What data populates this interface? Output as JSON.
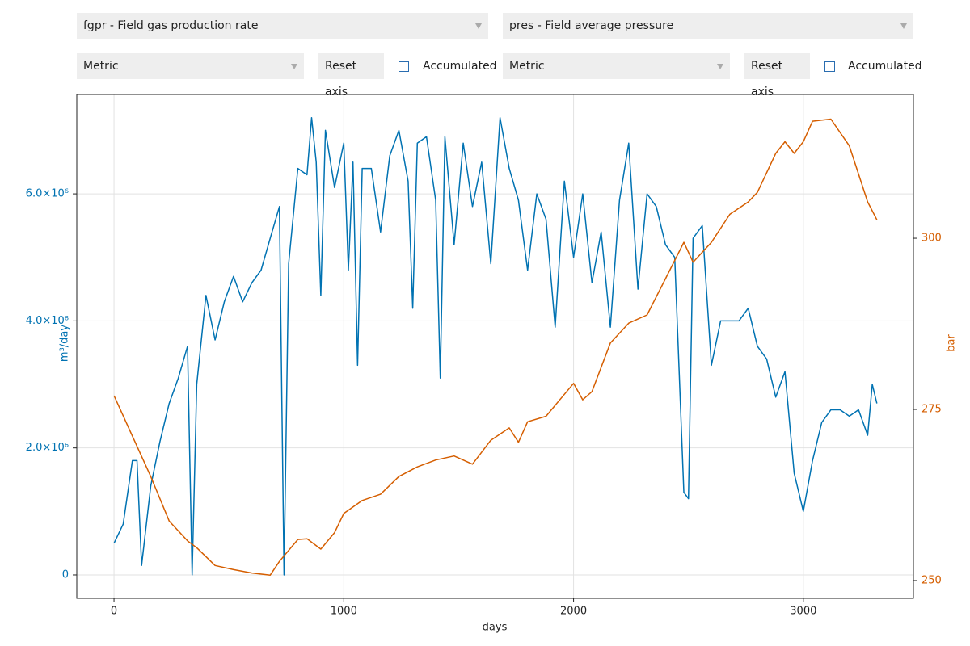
{
  "controls": {
    "left": {
      "variable": "fgpr - Field gas production rate",
      "units": "Metric",
      "reset": "Reset axis",
      "accumulated": "Accumulated"
    },
    "right": {
      "variable": "pres - Field average pressure",
      "units": "Metric",
      "reset": "Reset axis",
      "accumulated": "Accumulated"
    }
  },
  "chart_data": {
    "type": "line",
    "xlabel": "days",
    "ylabel": "m³/day",
    "y2label": "bar",
    "grid": true,
    "xlim": [
      -162,
      3479
    ],
    "ylim": [
      -369000,
      7565000
    ],
    "y2lim": [
      247.4,
      321.0
    ],
    "xticks": [
      0,
      1000,
      2000,
      3000
    ],
    "yticks": [
      0,
      {
        "value": 2000000,
        "label": "2.0×10⁶"
      },
      {
        "value": 4000000,
        "label": "4.0×10⁶"
      },
      {
        "value": 6000000,
        "label": "6.0×10⁶"
      }
    ],
    "y2ticks": [
      250,
      275,
      300
    ],
    "series": [
      {
        "name": "fgpr",
        "color": "#0072b2",
        "x": [
          0,
          40,
          80,
          100,
          120,
          160,
          200,
          240,
          280,
          320,
          340,
          360,
          400,
          440,
          480,
          520,
          560,
          600,
          640,
          680,
          720,
          740,
          760,
          800,
          840,
          860,
          880,
          900,
          920,
          960,
          1000,
          1020,
          1040,
          1060,
          1080,
          1120,
          1160,
          1200,
          1240,
          1280,
          1300,
          1320,
          1360,
          1400,
          1420,
          1440,
          1480,
          1520,
          1560,
          1600,
          1640,
          1680,
          1720,
          1760,
          1800,
          1840,
          1880,
          1920,
          1960,
          2000,
          2040,
          2080,
          2120,
          2160,
          2200,
          2240,
          2280,
          2320,
          2360,
          2400,
          2440,
          2480,
          2500,
          2520,
          2560,
          2600,
          2640,
          2680,
          2720,
          2760,
          2800,
          2840,
          2880,
          2920,
          2960,
          3000,
          3040,
          3080,
          3120,
          3160,
          3200,
          3240,
          3280,
          3300,
          3320
        ],
        "values": [
          500000,
          800000,
          1800000,
          1800000,
          150000,
          1400000,
          2100000,
          2700000,
          3100000,
          3600000,
          0,
          3000000,
          4400000,
          3700000,
          4300000,
          4700000,
          4300000,
          4600000,
          4800000,
          5300000,
          5800000,
          0,
          4900000,
          6400000,
          6300000,
          7200000,
          6500000,
          4400000,
          7000000,
          6100000,
          6800000,
          4800000,
          6500000,
          3300000,
          6400000,
          6400000,
          5400000,
          6600000,
          7000000,
          6200000,
          4200000,
          6800000,
          6900000,
          5900000,
          3100000,
          6900000,
          5200000,
          6800000,
          5800000,
          6500000,
          4900000,
          7200000,
          6400000,
          5900000,
          4800000,
          6000000,
          5600000,
          3900000,
          6200000,
          5000000,
          6000000,
          4600000,
          5400000,
          3900000,
          5900000,
          6800000,
          4500000,
          6000000,
          5800000,
          5200000,
          5000000,
          1300000,
          1200000,
          5300000,
          5500000,
          3300000,
          4000000,
          4000000,
          4000000,
          4200000,
          3600000,
          3400000,
          2800000,
          3200000,
          1600000,
          1000000,
          1800000,
          2400000,
          2600000,
          2600000,
          2500000,
          2600000,
          2200000,
          3000000,
          2700000
        ]
      },
      {
        "name": "pres",
        "color": "#d55e00",
        "axis": "y2",
        "x": [
          0,
          80,
          160,
          240,
          320,
          360,
          440,
          520,
          600,
          680,
          720,
          800,
          840,
          900,
          960,
          1000,
          1080,
          1160,
          1240,
          1320,
          1400,
          1480,
          1560,
          1640,
          1720,
          1760,
          1800,
          1880,
          1960,
          2000,
          2040,
          2080,
          2160,
          2240,
          2320,
          2400,
          2480,
          2520,
          2600,
          2680,
          2760,
          2800,
          2880,
          2920,
          2960,
          3000,
          3040,
          3120,
          3200,
          3280,
          3320
        ],
        "values": [
          277.0,
          271.1,
          265.2,
          258.7,
          255.8,
          254.8,
          252.2,
          251.6,
          251.1,
          250.8,
          252.8,
          256.0,
          256.1,
          254.6,
          257.0,
          259.8,
          261.7,
          262.6,
          265.2,
          266.6,
          267.6,
          268.2,
          267.0,
          270.5,
          272.3,
          270.2,
          273.2,
          274.0,
          277.2,
          278.8,
          276.4,
          277.6,
          284.7,
          287.6,
          288.8,
          294.1,
          299.4,
          296.5,
          299.4,
          303.5,
          305.3,
          306.7,
          312.4,
          314.1,
          312.4,
          314.1,
          317.1,
          317.4,
          313.5,
          305.3,
          302.7
        ]
      }
    ]
  }
}
